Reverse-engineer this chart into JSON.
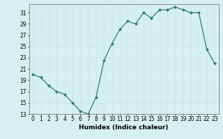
{
  "x": [
    0,
    1,
    2,
    3,
    4,
    5,
    6,
    7,
    8,
    9,
    10,
    11,
    12,
    13,
    14,
    15,
    16,
    17,
    18,
    19,
    20,
    21,
    22,
    23
  ],
  "y": [
    20,
    19.5,
    18,
    17,
    16.5,
    15,
    13.5,
    13,
    16,
    22.5,
    25.5,
    28,
    29.5,
    29,
    31,
    30,
    31.5,
    31.5,
    32,
    31.5,
    31,
    31,
    24.5,
    22
  ],
  "line_color": "#2e7d6e",
  "marker": "D",
  "marker_size": 2.0,
  "bg_color": "#d6f0ef",
  "grid_color": "#c8e8e6",
  "xlabel": "Humidex (Indice chaleur)",
  "xlim": [
    -0.5,
    23.5
  ],
  "ylim": [
    13,
    32.5
  ],
  "yticks": [
    13,
    15,
    17,
    19,
    21,
    23,
    25,
    27,
    29,
    31
  ],
  "xticks": [
    0,
    1,
    2,
    3,
    4,
    5,
    6,
    7,
    8,
    9,
    10,
    11,
    12,
    13,
    14,
    15,
    16,
    17,
    18,
    19,
    20,
    21,
    22,
    23
  ],
  "tick_fontsize": 5.5,
  "xlabel_fontsize": 6.5
}
